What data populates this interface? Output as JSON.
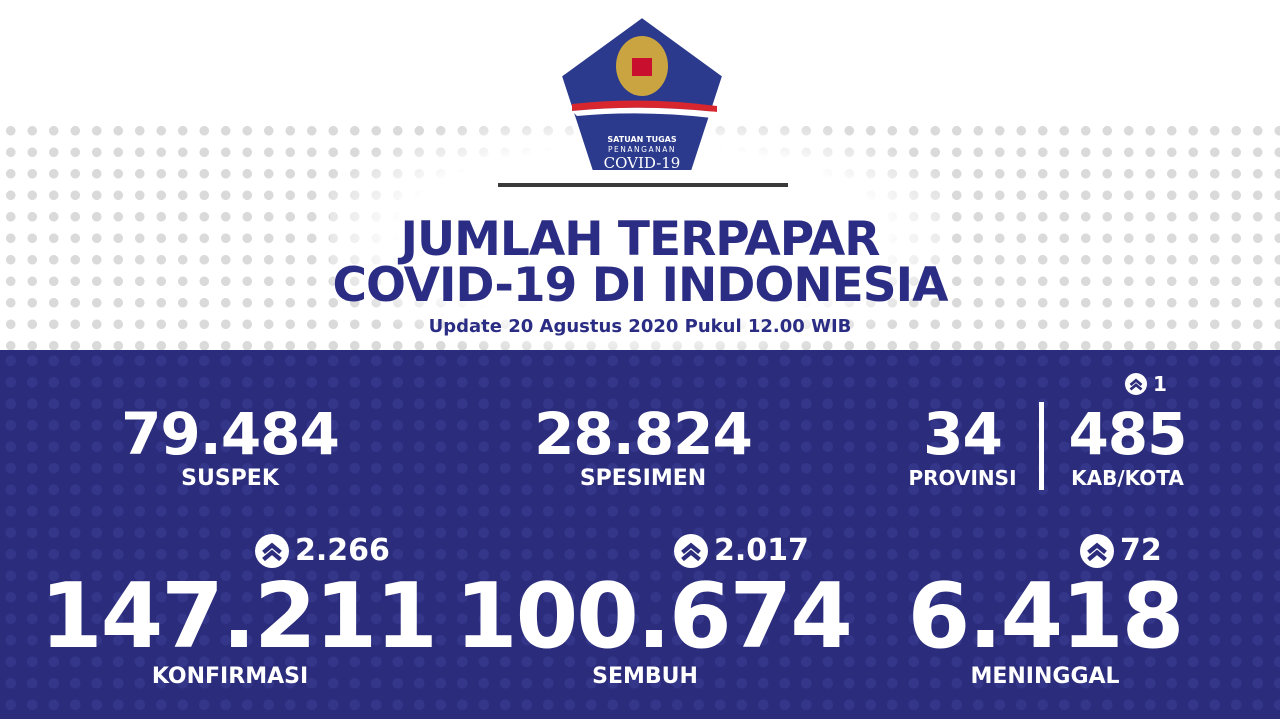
{
  "logo": {
    "line1": "SATUAN TUGAS",
    "line2": "PENANGANAN",
    "line3": "COVID-19"
  },
  "header": {
    "title_line1": "JUMLAH TERPAPAR",
    "title_line2": "COVID-19 DI INDONESIA",
    "update": "Update 20 Agustus 2020 Pukul 12.00 WIB"
  },
  "colors": {
    "primary": "#2b2c7c",
    "white": "#ffffff"
  },
  "stats": {
    "suspek": {
      "value": "79.484",
      "label": "SUSPEK"
    },
    "spesimen": {
      "value": "28.824",
      "label": "SPESIMEN"
    },
    "provinsi": {
      "value": "34",
      "label": "PROVINSI"
    },
    "kabkota": {
      "value": "485",
      "label": "KAB/KOTA",
      "delta": "1"
    },
    "konfirmasi": {
      "value": "147.211",
      "label": "KONFIRMASI",
      "delta": "2.266"
    },
    "sembuh": {
      "value": "100.674",
      "label": "SEMBUH",
      "delta": "2.017"
    },
    "meninggal": {
      "value": "6.418",
      "label": "MENINGGAL",
      "delta": "72"
    }
  }
}
